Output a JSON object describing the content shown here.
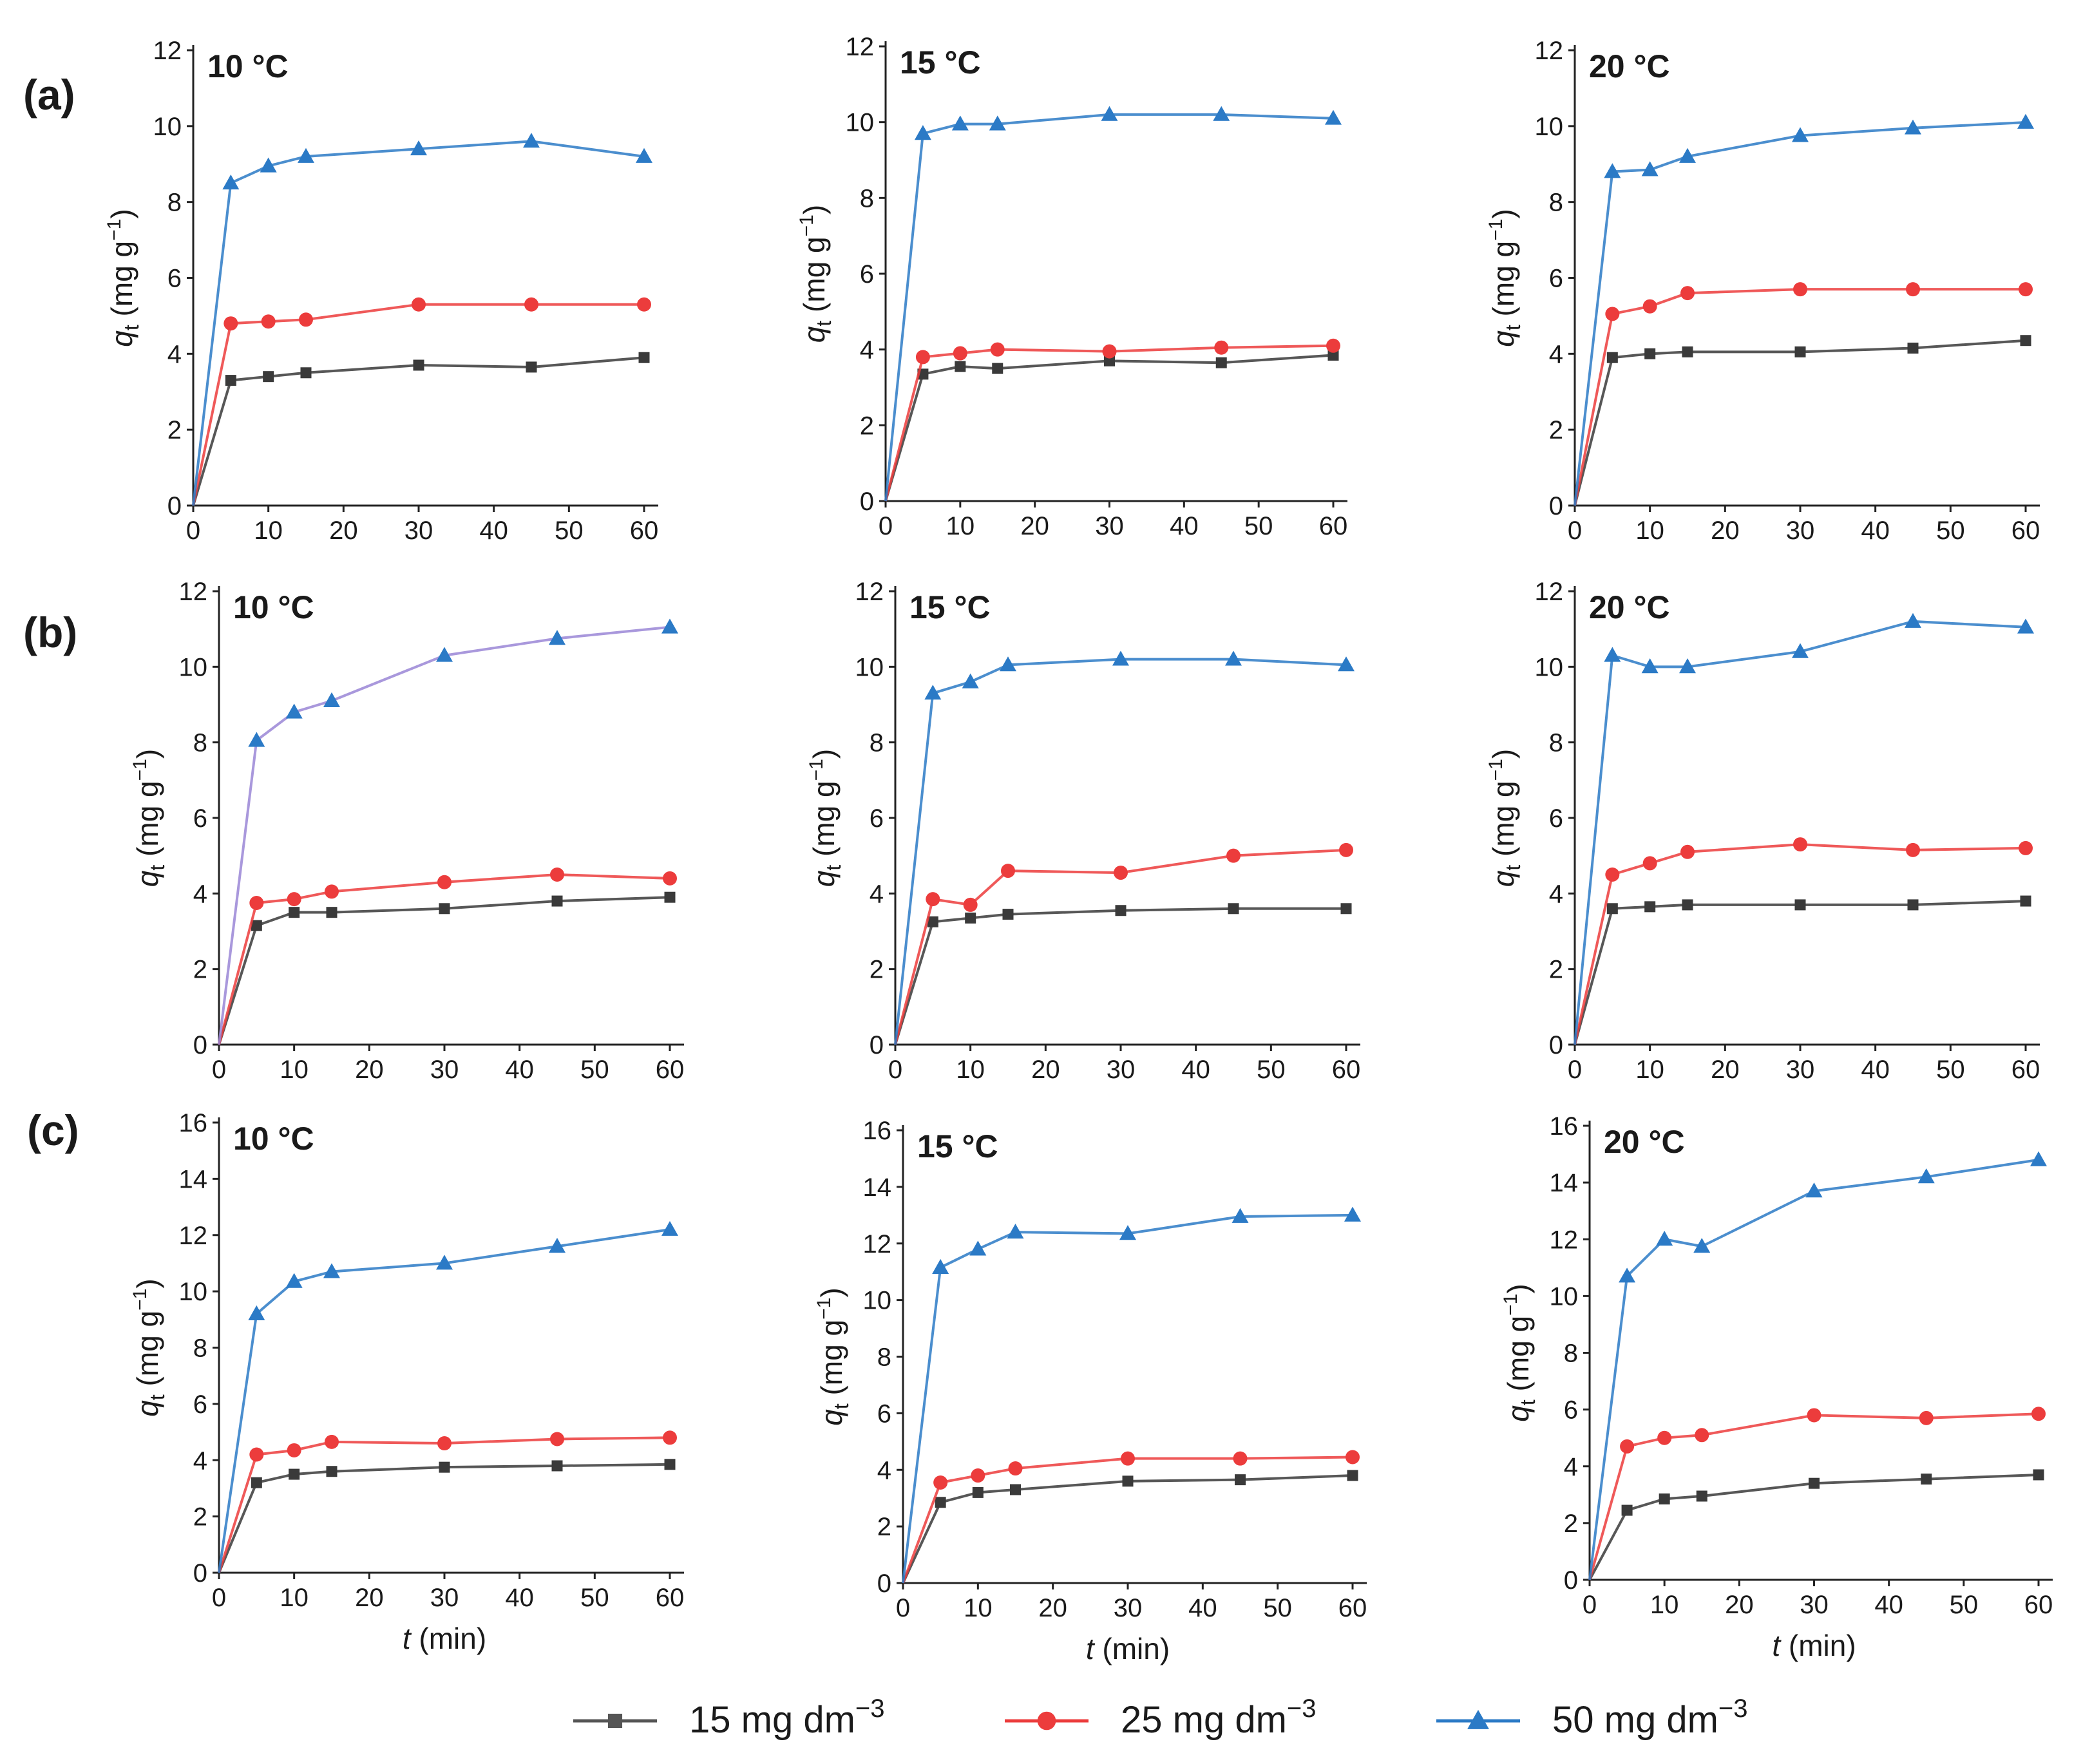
{
  "figure": {
    "row_labels": [
      "(a)",
      "(b)",
      "(c)"
    ],
    "y_axis_label": {
      "symbol": "q",
      "subscript": "t",
      "units": "(mg g",
      "exponent": "−1",
      "close": ")"
    },
    "x_axis_label": {
      "symbol": "t",
      "units": " (min)"
    },
    "colors": {
      "15 mg dm-3": "#3a3a3a",
      "25 mg dm-3": "#ec3c3c",
      "50 mg dm-3": "#2b7ac6",
      "50 mg dm-3 (b, 10 °C)": "#9a86d6",
      "marker_50_b10": "#2b7ac6"
    },
    "legend": [
      {
        "label": "15 mg dm",
        "exponent": "−3",
        "marker": "square",
        "color": "#555555"
      },
      {
        "label": "25 mg dm",
        "exponent": "−3",
        "marker": "circle",
        "color": "#ec3c3c"
      },
      {
        "label": "50 mg dm",
        "exponent": "−3",
        "marker": "triangle",
        "color": "#2b7ac6"
      }
    ]
  },
  "chart_data": [
    {
      "id": "a-10",
      "type": "line",
      "row": "(a)",
      "title": "10 °C",
      "x": [
        0,
        5,
        10,
        15,
        30,
        45,
        60
      ],
      "xlim": [
        0,
        60
      ],
      "ylim": [
        0,
        12
      ],
      "xticks": [
        0,
        10,
        20,
        30,
        40,
        50,
        60
      ],
      "yticks": [
        0,
        2,
        4,
        6,
        8,
        10,
        12
      ],
      "xlabel": "",
      "ylabel": "q_t (mg g^-1)",
      "series": [
        {
          "name": "15 mg dm-3",
          "values": [
            0,
            3.3,
            3.4,
            3.5,
            3.7,
            3.65,
            3.9
          ]
        },
        {
          "name": "25 mg dm-3",
          "values": [
            0,
            4.8,
            4.85,
            4.9,
            5.3,
            5.3,
            5.3
          ]
        },
        {
          "name": "50 mg dm-3",
          "values": [
            0,
            8.5,
            8.95,
            9.2,
            9.4,
            9.6,
            9.2
          ]
        }
      ]
    },
    {
      "id": "a-15",
      "type": "line",
      "row": "(a)",
      "title": "15 °C",
      "x": [
        0,
        5,
        10,
        15,
        30,
        45,
        60
      ],
      "xlim": [
        0,
        60
      ],
      "ylim": [
        0,
        12
      ],
      "xticks": [
        0,
        10,
        20,
        30,
        40,
        50,
        60
      ],
      "yticks": [
        0,
        2,
        4,
        6,
        8,
        10,
        12
      ],
      "xlabel": "",
      "ylabel": "q_t (mg g^-1)",
      "series": [
        {
          "name": "15 mg dm-3",
          "values": [
            0,
            3.35,
            3.55,
            3.5,
            3.7,
            3.65,
            3.85
          ]
        },
        {
          "name": "25 mg dm-3",
          "values": [
            0,
            3.8,
            3.9,
            4.0,
            3.95,
            4.05,
            4.1
          ]
        },
        {
          "name": "50 mg dm-3",
          "values": [
            0,
            9.7,
            9.95,
            9.95,
            10.2,
            10.2,
            10.1
          ]
        }
      ]
    },
    {
      "id": "a-20",
      "type": "line",
      "row": "(a)",
      "title": "20 °C",
      "x": [
        0,
        5,
        10,
        15,
        30,
        45,
        60
      ],
      "xlim": [
        0,
        60
      ],
      "ylim": [
        0,
        12
      ],
      "xticks": [
        0,
        10,
        20,
        30,
        40,
        50,
        60
      ],
      "yticks": [
        0,
        2,
        4,
        6,
        8,
        10,
        12
      ],
      "xlabel": "",
      "ylabel": "q_t (mg g^-1)",
      "series": [
        {
          "name": "15 mg dm-3",
          "values": [
            0,
            3.9,
            4.0,
            4.05,
            4.05,
            4.15,
            4.35
          ]
        },
        {
          "name": "25 mg dm-3",
          "values": [
            0,
            5.05,
            5.25,
            5.6,
            5.7,
            5.7,
            5.7
          ]
        },
        {
          "name": "50 mg dm-3",
          "values": [
            0,
            8.8,
            8.85,
            9.2,
            9.75,
            9.95,
            10.1
          ]
        }
      ]
    },
    {
      "id": "b-10",
      "type": "line",
      "row": "(b)",
      "title": "10 °C",
      "x": [
        0,
        5,
        10,
        15,
        30,
        45,
        60
      ],
      "xlim": [
        0,
        60
      ],
      "ylim": [
        0,
        12
      ],
      "xticks": [
        0,
        10,
        20,
        30,
        40,
        50,
        60
      ],
      "yticks": [
        0,
        2,
        4,
        6,
        8,
        10,
        12
      ],
      "xlabel": "",
      "ylabel": "q_t (mg g^-1)",
      "series": [
        {
          "name": "15 mg dm-3",
          "values": [
            0,
            3.15,
            3.5,
            3.5,
            3.6,
            3.8,
            3.9
          ]
        },
        {
          "name": "25 mg dm-3",
          "values": [
            0,
            3.75,
            3.85,
            4.05,
            4.3,
            4.5,
            4.4
          ]
        },
        {
          "name": "50 mg dm-3",
          "values": [
            0,
            8.05,
            8.8,
            9.1,
            10.3,
            10.75,
            11.05
          ],
          "line_color_key": "50 mg dm-3 (b, 10 °C)"
        }
      ]
    },
    {
      "id": "b-15",
      "type": "line",
      "row": "(b)",
      "title": "15 °C",
      "x": [
        0,
        5,
        10,
        15,
        30,
        45,
        60
      ],
      "xlim": [
        0,
        60
      ],
      "ylim": [
        0,
        12
      ],
      "xticks": [
        0,
        10,
        20,
        30,
        40,
        50,
        60
      ],
      "yticks": [
        0,
        2,
        4,
        6,
        8,
        10,
        12
      ],
      "xlabel": "",
      "ylabel": "q_t (mg g^-1)",
      "series": [
        {
          "name": "15 mg dm-3",
          "values": [
            0,
            3.25,
            3.35,
            3.45,
            3.55,
            3.6,
            3.6
          ]
        },
        {
          "name": "25 mg dm-3",
          "values": [
            0,
            3.85,
            3.7,
            4.6,
            4.55,
            5.0,
            5.15
          ]
        },
        {
          "name": "50 mg dm-3",
          "values": [
            0,
            9.3,
            9.6,
            10.05,
            10.2,
            10.2,
            10.05
          ]
        }
      ]
    },
    {
      "id": "b-20",
      "type": "line",
      "row": "(b)",
      "title": "20 °C",
      "x": [
        0,
        5,
        10,
        15,
        30,
        45,
        60
      ],
      "xlim": [
        0,
        60
      ],
      "ylim": [
        0,
        12
      ],
      "xticks": [
        0,
        10,
        20,
        30,
        40,
        50,
        60
      ],
      "yticks": [
        0,
        2,
        4,
        6,
        8,
        10,
        12
      ],
      "xlabel": "",
      "ylabel": "q_t (mg g^-1)",
      "series": [
        {
          "name": "15 mg dm-3",
          "values": [
            0,
            3.6,
            3.65,
            3.7,
            3.7,
            3.7,
            3.8
          ]
        },
        {
          "name": "25 mg dm-3",
          "values": [
            0,
            4.5,
            4.8,
            5.1,
            5.3,
            5.15,
            5.2
          ]
        },
        {
          "name": "50 mg dm-3",
          "values": [
            0,
            10.3,
            10.0,
            10.0,
            10.4,
            11.2,
            11.05
          ]
        }
      ]
    },
    {
      "id": "c-10",
      "type": "line",
      "row": "(c)",
      "title": "10 °C",
      "x": [
        0,
        5,
        10,
        15,
        30,
        45,
        60
      ],
      "xlim": [
        0,
        60
      ],
      "ylim": [
        0,
        16
      ],
      "xticks": [
        0,
        10,
        20,
        30,
        40,
        50,
        60
      ],
      "yticks": [
        0,
        2,
        4,
        6,
        8,
        10,
        12,
        14,
        16
      ],
      "xlabel": "t (min)",
      "ylabel": "q_t (mg g^-1)",
      "series": [
        {
          "name": "15 mg dm-3",
          "values": [
            0,
            3.2,
            3.5,
            3.6,
            3.75,
            3.8,
            3.85
          ]
        },
        {
          "name": "25 mg dm-3",
          "values": [
            0,
            4.2,
            4.35,
            4.65,
            4.6,
            4.75,
            4.8
          ]
        },
        {
          "name": "50 mg dm-3",
          "values": [
            0,
            9.2,
            10.35,
            10.7,
            11.0,
            11.6,
            12.2
          ]
        }
      ]
    },
    {
      "id": "c-15",
      "type": "line",
      "row": "(c)",
      "title": "15 °C",
      "x": [
        0,
        5,
        10,
        15,
        30,
        45,
        60
      ],
      "xlim": [
        0,
        60
      ],
      "ylim": [
        0,
        16
      ],
      "xticks": [
        0,
        10,
        20,
        30,
        40,
        50,
        60
      ],
      "yticks": [
        0,
        2,
        4,
        6,
        8,
        10,
        12,
        14,
        16
      ],
      "xlabel": "t (min)",
      "ylabel": "q_t (mg g^-1)",
      "series": [
        {
          "name": "15 mg dm-3",
          "values": [
            0,
            2.85,
            3.2,
            3.3,
            3.6,
            3.65,
            3.8
          ]
        },
        {
          "name": "25 mg dm-3",
          "values": [
            0,
            3.55,
            3.8,
            4.05,
            4.4,
            4.4,
            4.45
          ]
        },
        {
          "name": "50 mg dm-3",
          "values": [
            0,
            11.15,
            11.8,
            12.4,
            12.35,
            12.95,
            13.0
          ]
        }
      ]
    },
    {
      "id": "c-20",
      "type": "line",
      "row": "(c)",
      "title": "20 °C",
      "x": [
        0,
        5,
        10,
        15,
        30,
        45,
        60
      ],
      "xlim": [
        0,
        60
      ],
      "ylim": [
        0,
        16
      ],
      "xticks": [
        0,
        10,
        20,
        30,
        40,
        50,
        60
      ],
      "yticks": [
        0,
        2,
        4,
        6,
        8,
        10,
        12,
        14,
        16
      ],
      "xlabel": "t (min)",
      "ylabel": "q_t (mg g^-1)",
      "series": [
        {
          "name": "15 mg dm-3",
          "values": [
            0,
            2.45,
            2.85,
            2.95,
            3.4,
            3.55,
            3.7
          ]
        },
        {
          "name": "25 mg dm-3",
          "values": [
            0,
            4.7,
            5.0,
            5.1,
            5.8,
            5.7,
            5.85
          ]
        },
        {
          "name": "50 mg dm-3",
          "values": [
            0,
            10.7,
            12.0,
            11.75,
            13.7,
            14.2,
            14.8
          ]
        }
      ]
    }
  ]
}
